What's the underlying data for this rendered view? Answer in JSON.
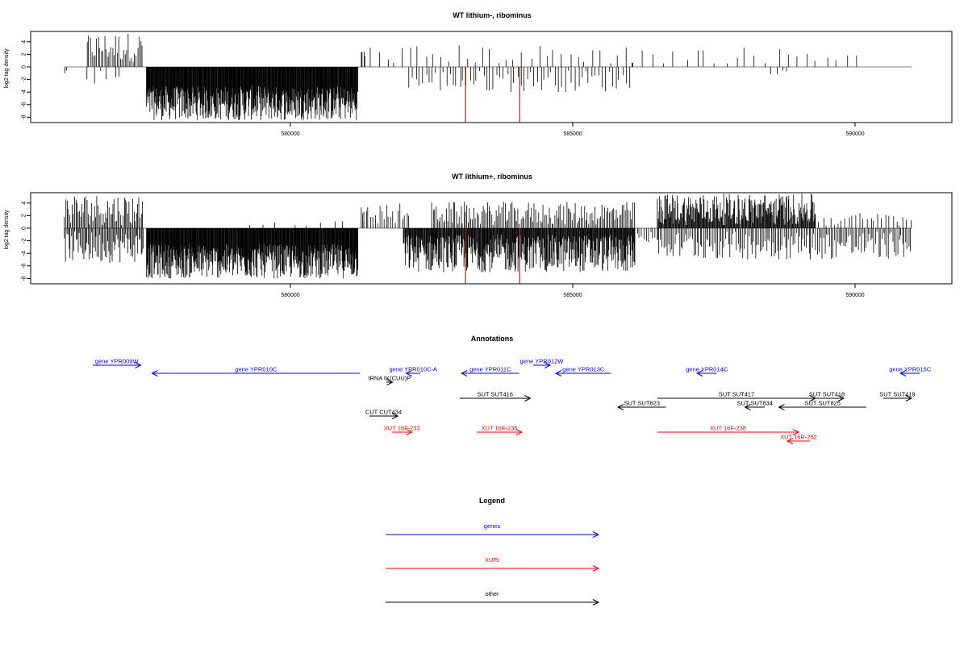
{
  "chart_data": [
    {
      "type": "bar",
      "title": "WT lithium-, ribominus",
      "ylabel": "log2 tag density",
      "xlabel": "",
      "xlim": [
        575500,
        591500
      ],
      "ylim": [
        -9,
        6
      ],
      "yticks": [
        4,
        2,
        0,
        -2,
        -4,
        -6,
        -8
      ],
      "xticks": [
        580000,
        585000,
        590000
      ],
      "grid": false,
      "baseline": {
        "from": 576000,
        "to": 591000,
        "color": "#808080"
      },
      "highlight_x": [
        583100,
        584060
      ],
      "highlight_depth": -8.8,
      "highlight_color": "#ff0000",
      "bar_color": "#000000",
      "segments": [
        {
          "from": 576000,
          "to": 576030,
          "min": -1.2,
          "max": -0.6,
          "step": 30
        },
        {
          "from": 576400,
          "to": 577400,
          "min": 0.8,
          "max": 5.5,
          "step": 28
        },
        {
          "from": 576400,
          "to": 577000,
          "min": -3.5,
          "max": -0.5,
          "step": 120
        },
        {
          "from": 577450,
          "to": 581200,
          "min": -8.5,
          "max": -3.0,
          "step": 8
        },
        {
          "from": 581250,
          "to": 581300,
          "min": 2.0,
          "max": 2.8,
          "step": 25
        },
        {
          "from": 581300,
          "to": 586100,
          "min": 0.4,
          "max": 3.5,
          "step": 140
        },
        {
          "from": 582100,
          "to": 586000,
          "min": -4.0,
          "max": -0.5,
          "step": 60
        },
        {
          "from": 586100,
          "to": 590200,
          "min": 0.5,
          "max": 3.2,
          "step": 180
        },
        {
          "from": 588500,
          "to": 588800,
          "min": -1.2,
          "max": -0.6,
          "step": 100
        }
      ]
    },
    {
      "type": "bar",
      "title": "WT lithium+, ribominus",
      "ylabel": "log2 tag density",
      "xlabel": "",
      "xlim": [
        575500,
        591500
      ],
      "ylim": [
        -9,
        6
      ],
      "yticks": [
        4,
        2,
        0,
        -2,
        -4,
        -6,
        -8
      ],
      "xticks": [
        580000,
        585000,
        590000
      ],
      "grid": false,
      "baseline": {
        "from": 576000,
        "to": 591000,
        "color": "#808080"
      },
      "highlight_x": [
        583100,
        584060
      ],
      "highlight_depth": -8.8,
      "highlight_color": "#ff0000",
      "bar_color": "#000000",
      "segments": [
        {
          "from": 576000,
          "to": 577400,
          "min": -5.5,
          "max": -0.5,
          "step": 20
        },
        {
          "from": 576000,
          "to": 577400,
          "min": 0.5,
          "max": 5.5,
          "step": 22
        },
        {
          "from": 577450,
          "to": 581200,
          "min": -8.0,
          "max": -2.5,
          "step": 8
        },
        {
          "from": 579300,
          "to": 581000,
          "min": 0.3,
          "max": 1.2,
          "step": 240
        },
        {
          "from": 581250,
          "to": 581300,
          "min": 1.5,
          "max": 3.5,
          "step": 25
        },
        {
          "from": 581300,
          "to": 582100,
          "min": 0.5,
          "max": 4.0,
          "step": 40
        },
        {
          "from": 582000,
          "to": 586100,
          "min": -7.0,
          "max": -1.0,
          "step": 10
        },
        {
          "from": 582500,
          "to": 586100,
          "min": 0.5,
          "max": 4.2,
          "step": 26
        },
        {
          "from": 586100,
          "to": 586500,
          "min": -3.0,
          "max": -0.5,
          "step": 40
        },
        {
          "from": 586500,
          "to": 589300,
          "min": 0.5,
          "max": 5.5,
          "step": 12
        },
        {
          "from": 586500,
          "to": 591000,
          "min": -5.0,
          "max": -0.5,
          "step": 28
        },
        {
          "from": 589300,
          "to": 591000,
          "min": 0.3,
          "max": 2.5,
          "step": 65
        }
      ]
    },
    {
      "type": "annotation",
      "title": "Annotations",
      "features": [
        {
          "label": "gene YPR009W",
          "color": "#0000ff",
          "from": 576500,
          "to": 577350,
          "dir": "right",
          "row": 0
        },
        {
          "label": "gene YPR010C",
          "color": "#0000ff",
          "from": 577550,
          "to": 581230,
          "dir": "left",
          "row": 1
        },
        {
          "label": "gene YPR010C-A",
          "color": "#0000ff",
          "from": 582050,
          "to": 582300,
          "dir": "left",
          "row": 1
        },
        {
          "label": "gene YPR011C",
          "color": "#0000ff",
          "from": 583030,
          "to": 584050,
          "dir": "left",
          "row": 1
        },
        {
          "label": "gene YPR012W",
          "color": "#0000ff",
          "from": 584300,
          "to": 584600,
          "dir": "right",
          "row": 0
        },
        {
          "label": "gene YPR013C",
          "color": "#0000ff",
          "from": 584700,
          "to": 585680,
          "dir": "left",
          "row": 1
        },
        {
          "label": "gene YPR014C",
          "color": "#0000ff",
          "from": 587200,
          "to": 587550,
          "dir": "left",
          "row": 1
        },
        {
          "label": "gene YPR015C",
          "color": "#0000ff",
          "from": 590800,
          "to": 591150,
          "dir": "left",
          "row": 1
        },
        {
          "label": "tRNA tK(CUU)P",
          "color": "#000000",
          "from": 581700,
          "to": 581810,
          "dir": "right",
          "row": 2
        },
        {
          "label": "SUT SUT416",
          "color": "#000000",
          "from": 583000,
          "to": 584250,
          "dir": "right",
          "row": 4
        },
        {
          "label": "SUT SUT417",
          "color": "#000000",
          "from": 586500,
          "to": 589300,
          "dir": "right",
          "row": 4
        },
        {
          "label": "SUT SUT418",
          "color": "#000000",
          "from": 589200,
          "to": 589800,
          "dir": "right",
          "row": 4
        },
        {
          "label": "SUT SUT419",
          "color": "#000000",
          "from": 590500,
          "to": 591000,
          "dir": "right",
          "row": 4
        },
        {
          "label": "SUT SUT823",
          "color": "#000000",
          "from": 585800,
          "to": 586650,
          "dir": "left",
          "row": 5
        },
        {
          "label": "SUT SUT834",
          "color": "#000000",
          "from": 588050,
          "to": 588400,
          "dir": "left",
          "row": 5
        },
        {
          "label": "SUT SUT825",
          "color": "#000000",
          "from": 588650,
          "to": 590200,
          "dir": "left",
          "row": 5
        },
        {
          "label": "CUT CUT434",
          "color": "#000000",
          "from": 581400,
          "to": 581900,
          "dir": "right",
          "row": 6
        },
        {
          "label": "XUT 16F-233",
          "color": "#ff0000",
          "from": 581800,
          "to": 582150,
          "dir": "right",
          "row": 7
        },
        {
          "label": "XUT 16F-236",
          "color": "#ff0000",
          "from": 583300,
          "to": 584100,
          "dir": "right",
          "row": 7
        },
        {
          "label": "XUT 16F-238",
          "color": "#ff0000",
          "from": 586500,
          "to": 589000,
          "dir": "right",
          "row": 7
        },
        {
          "label": "XUT 16R-262",
          "color": "#ff0000",
          "from": 588800,
          "to": 589200,
          "dir": "left",
          "row": 8
        }
      ]
    },
    {
      "type": "legend",
      "title": "Legend",
      "entries": [
        {
          "label": "genes",
          "color": "#0000ff"
        },
        {
          "label": "XUTs",
          "color": "#ff0000"
        },
        {
          "label": "other",
          "color": "#000000"
        }
      ]
    }
  ]
}
